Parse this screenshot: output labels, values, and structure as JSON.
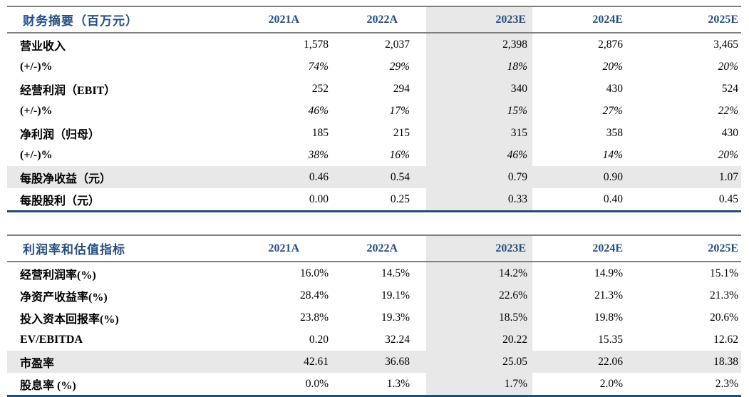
{
  "colors": {
    "header_text_navy": "#284e7e",
    "bottom_border_navy": "#1f4e79",
    "rule_gray": "#7f7f7f",
    "highlight_gray": "#e8e8e8"
  },
  "tables": [
    {
      "title": "财务摘要（百万元）",
      "columns": [
        "2021A",
        "2022A",
        "2023E",
        "2024E",
        "2025E"
      ],
      "highlight_column": "2023E",
      "rows": [
        {
          "label": "营业收入",
          "values": [
            "1,578",
            "2,037",
            "2,398",
            "2,876",
            "3,465"
          ],
          "italic": false,
          "highlight": false
        },
        {
          "label": "(+/-)%",
          "values": [
            "74%",
            "29%",
            "18%",
            "20%",
            "20%"
          ],
          "italic": true,
          "highlight": false
        },
        {
          "label": "经营利润（EBIT）",
          "values": [
            "252",
            "294",
            "340",
            "430",
            "524"
          ],
          "italic": false,
          "highlight": false
        },
        {
          "label": "(+/-)%",
          "values": [
            "46%",
            "17%",
            "15%",
            "27%",
            "22%"
          ],
          "italic": true,
          "highlight": false
        },
        {
          "label": "净利润（归母）",
          "values": [
            "185",
            "215",
            "315",
            "358",
            "430"
          ],
          "italic": false,
          "highlight": false
        },
        {
          "label": "(+/-)%",
          "values": [
            "38%",
            "16%",
            "46%",
            "14%",
            "20%"
          ],
          "italic": true,
          "highlight": false
        },
        {
          "label": "每股净收益（元）",
          "values": [
            "0.46",
            "0.54",
            "0.79",
            "0.90",
            "1.07"
          ],
          "italic": false,
          "highlight": true
        },
        {
          "label": "每股股利（元）",
          "values": [
            "0.00",
            "0.25",
            "0.33",
            "0.40",
            "0.45"
          ],
          "italic": false,
          "highlight": false
        }
      ]
    },
    {
      "title": "利润率和估值指标",
      "columns": [
        "2021A",
        "2022A",
        "2023E",
        "2024E",
        "2025E"
      ],
      "highlight_column": "2023E",
      "rows": [
        {
          "label": "经营利润率(%)",
          "values": [
            "16.0%",
            "14.5%",
            "14.2%",
            "14.9%",
            "15.1%"
          ],
          "italic": false,
          "highlight": false
        },
        {
          "label": "净资产收益率(%)",
          "values": [
            "28.4%",
            "19.1%",
            "22.6%",
            "21.3%",
            "21.3%"
          ],
          "italic": false,
          "highlight": false
        },
        {
          "label": "投入资本回报率(%)",
          "values": [
            "23.8%",
            "19.3%",
            "18.5%",
            "19.8%",
            "20.6%"
          ],
          "italic": false,
          "highlight": false
        },
        {
          "label": "EV/EBITDA",
          "values": [
            "0.20",
            "32.24",
            "20.22",
            "15.35",
            "12.62"
          ],
          "italic": false,
          "highlight": false
        },
        {
          "label": "市盈率",
          "values": [
            "42.61",
            "36.68",
            "25.05",
            "22.06",
            "18.38"
          ],
          "italic": false,
          "highlight": true
        },
        {
          "label": "股息率 (%)",
          "values": [
            "0.0%",
            "1.3%",
            "1.7%",
            "2.0%",
            "2.3%"
          ],
          "italic": false,
          "highlight": false
        }
      ]
    }
  ]
}
